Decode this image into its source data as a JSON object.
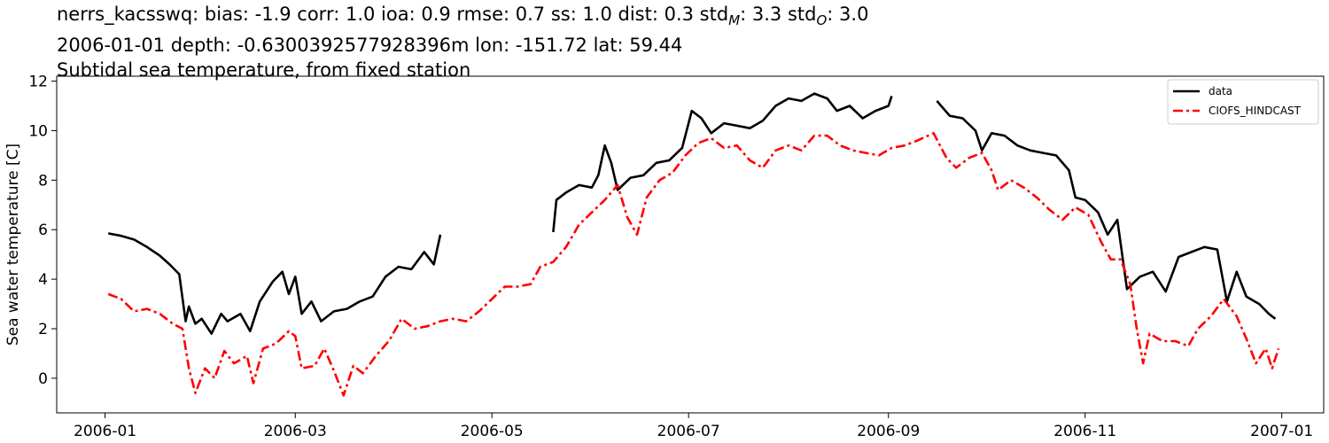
{
  "titles": {
    "line1": "nerrs_kacsswq: bias: -1.9  corr: 1.0  ioa: 0.9  rmse: 0.7  ss: 1.0  dist: 0.3  std",
    "line1_sub_m": "M",
    "line1_mid": ": 3.3  std",
    "line1_sub_o": "O",
    "line1_end": ": 3.0",
    "line2": "2006-01-01 depth: -0.6300392577928396m lon: -151.72 lat: 59.44",
    "line3": "Subtidal sea temperature, from fixed station"
  },
  "chart_data": {
    "type": "line",
    "xlabel": "",
    "ylabel": "Sea water temperature [C]",
    "xlim": [
      "2005-12-17",
      "2007-01-14"
    ],
    "ylim": [
      -1.4,
      12.2
    ],
    "x_ticks": [
      "2006-01",
      "2006-03",
      "2006-05",
      "2006-07",
      "2006-09",
      "2006-11",
      "2007-01"
    ],
    "y_ticks": [
      0,
      2,
      4,
      6,
      8,
      10,
      12
    ],
    "grid": false,
    "legend": "upper right",
    "series": [
      {
        "name": "data",
        "color": "#000000",
        "style": "solid",
        "segments": [
          [
            [
              "2006-01-02",
              5.85
            ],
            [
              "2006-01-06",
              5.75
            ],
            [
              "2006-01-10",
              5.6
            ],
            [
              "2006-01-14",
              5.3
            ],
            [
              "2006-01-18",
              4.95
            ],
            [
              "2006-01-21",
              4.6
            ],
            [
              "2006-01-24",
              4.2
            ],
            [
              "2006-01-26",
              2.3
            ],
            [
              "2006-01-27",
              2.9
            ],
            [
              "2006-01-29",
              2.2
            ],
            [
              "2006-01-31",
              2.4
            ],
            [
              "2006-02-03",
              1.8
            ],
            [
              "2006-02-06",
              2.6
            ],
            [
              "2006-02-08",
              2.3
            ],
            [
              "2006-02-12",
              2.6
            ],
            [
              "2006-02-15",
              1.9
            ],
            [
              "2006-02-18",
              3.1
            ],
            [
              "2006-02-22",
              3.9
            ],
            [
              "2006-02-25",
              4.3
            ],
            [
              "2006-02-27",
              3.4
            ],
            [
              "2006-03-01",
              4.1
            ],
            [
              "2006-03-03",
              2.6
            ],
            [
              "2006-03-06",
              3.1
            ],
            [
              "2006-03-09",
              2.3
            ],
            [
              "2006-03-13",
              2.7
            ],
            [
              "2006-03-17",
              2.8
            ],
            [
              "2006-03-21",
              3.1
            ],
            [
              "2006-03-25",
              3.3
            ],
            [
              "2006-03-29",
              4.1
            ],
            [
              "2006-04-02",
              4.5
            ],
            [
              "2006-04-06",
              4.4
            ],
            [
              "2006-04-10",
              5.1
            ],
            [
              "2006-04-13",
              4.6
            ],
            [
              "2006-04-15",
              5.8
            ]
          ],
          [
            [
              "2006-05-20",
              5.9
            ],
            [
              "2006-05-21",
              7.2
            ],
            [
              "2006-05-24",
              7.5
            ],
            [
              "2006-05-28",
              7.8
            ],
            [
              "2006-06-01",
              7.7
            ],
            [
              "2006-06-03",
              8.2
            ],
            [
              "2006-06-05",
              9.4
            ],
            [
              "2006-06-07",
              8.7
            ],
            [
              "2006-06-09",
              7.6
            ],
            [
              "2006-06-13",
              8.1
            ],
            [
              "2006-06-17",
              8.2
            ],
            [
              "2006-06-21",
              8.7
            ],
            [
              "2006-06-25",
              8.8
            ],
            [
              "2006-06-29",
              9.3
            ],
            [
              "2006-07-02",
              10.8
            ],
            [
              "2006-07-05",
              10.5
            ],
            [
              "2006-07-08",
              9.9
            ],
            [
              "2006-07-12",
              10.3
            ],
            [
              "2006-07-16",
              10.2
            ],
            [
              "2006-07-20",
              10.1
            ],
            [
              "2006-07-24",
              10.4
            ],
            [
              "2006-07-28",
              11.0
            ],
            [
              "2006-08-01",
              11.3
            ],
            [
              "2006-08-05",
              11.2
            ],
            [
              "2006-08-09",
              11.5
            ],
            [
              "2006-08-13",
              11.3
            ],
            [
              "2006-08-16",
              10.8
            ],
            [
              "2006-08-20",
              11.0
            ],
            [
              "2006-08-24",
              10.5
            ],
            [
              "2006-08-28",
              10.8
            ],
            [
              "2006-09-01",
              11.0
            ],
            [
              "2006-09-02",
              11.4
            ]
          ],
          [
            [
              "2006-09-16",
              11.2
            ],
            [
              "2006-09-20",
              10.6
            ],
            [
              "2006-09-24",
              10.5
            ],
            [
              "2006-09-28",
              10.0
            ],
            [
              "2006-09-30",
              9.2
            ],
            [
              "2006-10-03",
              9.9
            ],
            [
              "2006-10-07",
              9.8
            ],
            [
              "2006-10-11",
              9.4
            ],
            [
              "2006-10-15",
              9.2
            ],
            [
              "2006-10-19",
              9.1
            ],
            [
              "2006-10-23",
              9.0
            ],
            [
              "2006-10-27",
              8.4
            ],
            [
              "2006-10-29",
              7.3
            ],
            [
              "2006-11-01",
              7.2
            ],
            [
              "2006-11-05",
              6.7
            ],
            [
              "2006-11-08",
              5.8
            ],
            [
              "2006-11-11",
              6.4
            ],
            [
              "2006-11-14",
              3.6
            ],
            [
              "2006-11-18",
              4.1
            ],
            [
              "2006-11-22",
              4.3
            ],
            [
              "2006-11-26",
              3.5
            ],
            [
              "2006-11-30",
              4.9
            ],
            [
              "2006-12-04",
              5.1
            ],
            [
              "2006-12-08",
              5.3
            ],
            [
              "2006-12-12",
              5.2
            ],
            [
              "2006-12-15",
              3.1
            ],
            [
              "2006-12-18",
              4.3
            ],
            [
              "2006-12-21",
              3.3
            ],
            [
              "2006-12-25",
              3.0
            ],
            [
              "2006-12-28",
              2.6
            ],
            [
              "2006-12-30",
              2.4
            ]
          ]
        ]
      },
      {
        "name": "CIOFS_HINDCAST",
        "color": "#ff0000",
        "style": "dashdot",
        "segments": [
          [
            [
              "2006-01-02",
              3.4
            ],
            [
              "2006-01-06",
              3.2
            ],
            [
              "2006-01-10",
              2.7
            ],
            [
              "2006-01-14",
              2.8
            ],
            [
              "2006-01-18",
              2.6
            ],
            [
              "2006-01-22",
              2.2
            ],
            [
              "2006-01-25",
              2.0
            ],
            [
              "2006-01-27",
              0.4
            ],
            [
              "2006-01-29",
              -0.6
            ],
            [
              "2006-02-01",
              0.4
            ],
            [
              "2006-02-04",
              0.0
            ],
            [
              "2006-02-07",
              1.1
            ],
            [
              "2006-02-10",
              0.6
            ],
            [
              "2006-02-14",
              0.9
            ],
            [
              "2006-02-16",
              -0.2
            ],
            [
              "2006-02-19",
              1.2
            ],
            [
              "2006-02-23",
              1.4
            ],
            [
              "2006-02-27",
              1.9
            ],
            [
              "2006-03-01",
              1.7
            ],
            [
              "2006-03-03",
              0.4
            ],
            [
              "2006-03-07",
              0.5
            ],
            [
              "2006-03-10",
              1.2
            ],
            [
              "2006-03-13",
              0.3
            ],
            [
              "2006-03-16",
              -0.7
            ],
            [
              "2006-03-19",
              0.5
            ],
            [
              "2006-03-22",
              0.2
            ],
            [
              "2006-03-26",
              0.9
            ],
            [
              "2006-03-30",
              1.5
            ],
            [
              "2006-04-03",
              2.4
            ],
            [
              "2006-04-07",
              2.0
            ],
            [
              "2006-04-11",
              2.1
            ],
            [
              "2006-04-15",
              2.3
            ],
            [
              "2006-04-19",
              2.4
            ],
            [
              "2006-04-23",
              2.3
            ],
            [
              "2006-04-27",
              2.7
            ],
            [
              "2006-05-01",
              3.2
            ],
            [
              "2006-05-05",
              3.7
            ],
            [
              "2006-05-09",
              3.7
            ],
            [
              "2006-05-13",
              3.8
            ],
            [
              "2006-05-16",
              4.5
            ],
            [
              "2006-05-20",
              4.7
            ],
            [
              "2006-05-24",
              5.3
            ],
            [
              "2006-05-28",
              6.2
            ],
            [
              "2006-06-01",
              6.7
            ],
            [
              "2006-06-05",
              7.2
            ],
            [
              "2006-06-09",
              7.8
            ],
            [
              "2006-06-12",
              6.5
            ],
            [
              "2006-06-15",
              5.8
            ],
            [
              "2006-06-18",
              7.3
            ],
            [
              "2006-06-22",
              8.0
            ],
            [
              "2006-06-26",
              8.3
            ],
            [
              "2006-06-30",
              9.0
            ],
            [
              "2006-07-04",
              9.5
            ],
            [
              "2006-07-08",
              9.7
            ],
            [
              "2006-07-12",
              9.3
            ],
            [
              "2006-07-16",
              9.4
            ],
            [
              "2006-07-20",
              8.8
            ],
            [
              "2006-07-24",
              8.5
            ],
            [
              "2006-07-28",
              9.2
            ],
            [
              "2006-08-01",
              9.4
            ],
            [
              "2006-08-05",
              9.2
            ],
            [
              "2006-08-09",
              9.8
            ],
            [
              "2006-08-13",
              9.8
            ],
            [
              "2006-08-17",
              9.4
            ],
            [
              "2006-08-21",
              9.2
            ],
            [
              "2006-08-25",
              9.1
            ],
            [
              "2006-08-29",
              9.0
            ],
            [
              "2006-09-02",
              9.3
            ],
            [
              "2006-09-06",
              9.4
            ],
            [
              "2006-09-10",
              9.6
            ],
            [
              "2006-09-15",
              9.9
            ],
            [
              "2006-09-19",
              8.9
            ],
            [
              "2006-09-22",
              8.5
            ],
            [
              "2006-09-26",
              8.9
            ],
            [
              "2006-09-30",
              9.1
            ],
            [
              "2006-10-03",
              8.4
            ],
            [
              "2006-10-05",
              7.6
            ],
            [
              "2006-10-09",
              8.0
            ],
            [
              "2006-10-13",
              7.7
            ],
            [
              "2006-10-17",
              7.3
            ],
            [
              "2006-10-21",
              6.8
            ],
            [
              "2006-10-25",
              6.4
            ],
            [
              "2006-10-29",
              6.9
            ],
            [
              "2006-11-02",
              6.6
            ],
            [
              "2006-11-06",
              5.5
            ],
            [
              "2006-11-09",
              4.8
            ],
            [
              "2006-11-12",
              4.8
            ],
            [
              "2006-11-15",
              3.8
            ],
            [
              "2006-11-17",
              2.0
            ],
            [
              "2006-11-19",
              0.6
            ],
            [
              "2006-11-21",
              1.8
            ],
            [
              "2006-11-25",
              1.5
            ],
            [
              "2006-11-29",
              1.5
            ],
            [
              "2006-12-03",
              1.3
            ],
            [
              "2006-12-06",
              2.0
            ],
            [
              "2006-12-10",
              2.5
            ],
            [
              "2006-12-14",
              3.2
            ],
            [
              "2006-12-18",
              2.5
            ],
            [
              "2006-12-21",
              1.6
            ],
            [
              "2006-12-24",
              0.6
            ],
            [
              "2006-12-27",
              1.2
            ],
            [
              "2006-12-29",
              0.4
            ],
            [
              "2006-12-31",
              1.2
            ]
          ]
        ]
      }
    ]
  }
}
